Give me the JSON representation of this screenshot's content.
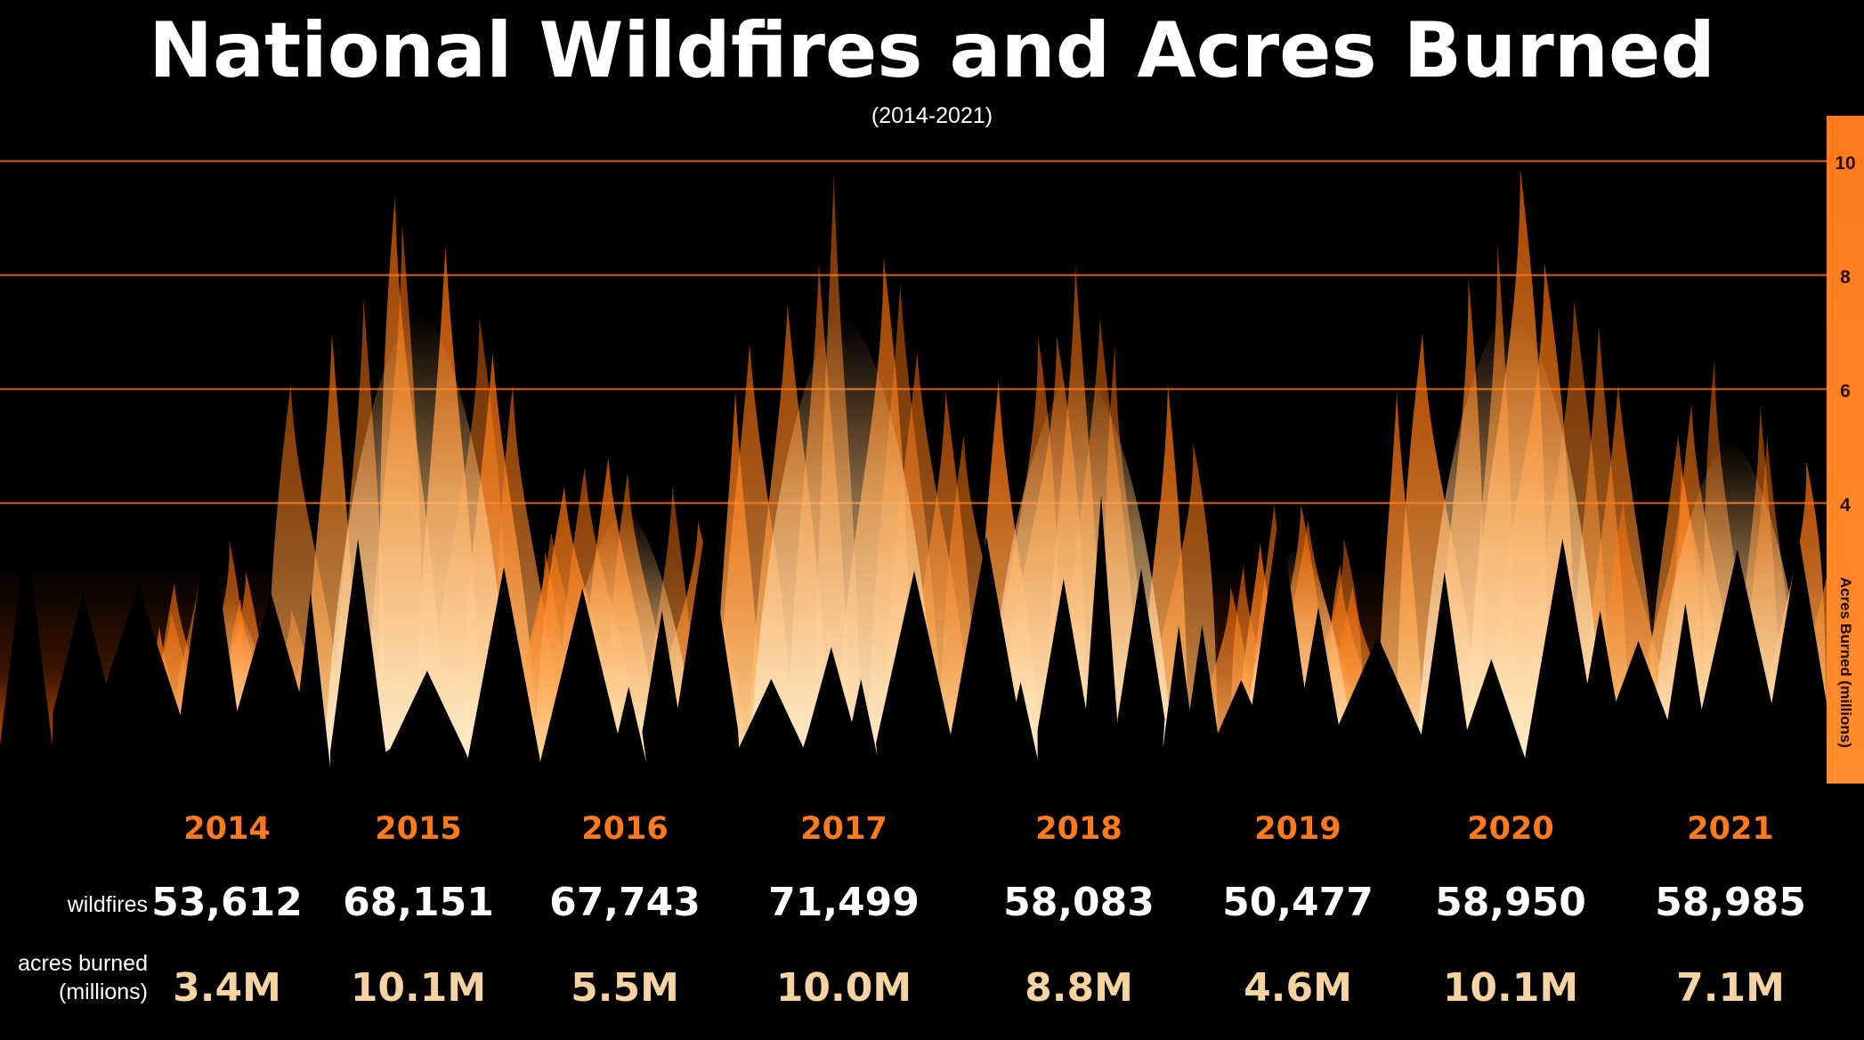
{
  "chart_data": {
    "type": "bar",
    "title": "National Wildfires and Acres Burned",
    "subtitle": "(2014-2021)",
    "categories": [
      "2014",
      "2015",
      "2016",
      "2017",
      "2018",
      "2019",
      "2020",
      "2021"
    ],
    "series": [
      {
        "name": "wildfires",
        "values": [
          53612,
          68151,
          67743,
          71499,
          58083,
          50477,
          58950,
          58985
        ]
      },
      {
        "name": "acres burned (millions)",
        "values": [
          3.4,
          10.1,
          5.5,
          10.0,
          8.8,
          4.6,
          10.1,
          7.1
        ]
      }
    ],
    "wildfire_labels": [
      "53,612",
      "68,151",
      "67,743",
      "71,499",
      "58,083",
      "50,477",
      "58,950",
      "58,985"
    ],
    "acres_labels": [
      "3.4M",
      "10.1M",
      "5.5M",
      "10.0M",
      "8.8M",
      "4.6M",
      "10.1M",
      "7.1M"
    ],
    "row_labels": {
      "wildfires": "wildfires",
      "acres_line1": "acres burned",
      "acres_line2": "(millions)"
    },
    "ylabel": "Acres Burned (millions)",
    "y_ticks": [
      "4",
      "6",
      "8",
      "10"
    ],
    "ylim": [
      0,
      10.5
    ],
    "grid": true,
    "colors": {
      "year": "#ff7a1c",
      "acres": "#f6d3a0",
      "axis_bar": "#ff7a1c",
      "gridline": "#b3531a",
      "flame_core": "#fff0cc",
      "flame_mid": "#ff9a3c",
      "flame_edge": "#ff6a00"
    }
  }
}
